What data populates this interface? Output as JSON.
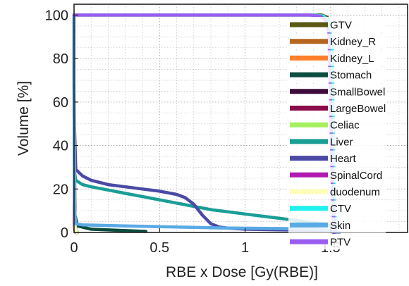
{
  "chart_data": {
    "type": "line",
    "title": "",
    "xlabel": "RBE x Dose [Gy(RBE)]",
    "ylabel": "Volume [%]",
    "xlim": [
      0,
      1.95
    ],
    "ylim": [
      0,
      105
    ],
    "xticks": [
      0,
      0.5,
      1,
      1.5
    ],
    "xtick_labels": [
      "0",
      "0.5",
      "1",
      "1.5"
    ],
    "yticks": [
      0,
      20,
      40,
      60,
      80,
      100
    ],
    "ytick_labels": [
      "0",
      "20",
      "40",
      "60",
      "80",
      "100"
    ],
    "grid": true,
    "legend_position": "right",
    "series": [
      {
        "name": "GTV",
        "color": "#5a5a12",
        "x": [
          0,
          1.4,
          1.45,
          1.48,
          1.5,
          1.51,
          1.52
        ],
        "y": [
          100,
          100,
          100,
          99,
          90,
          20,
          0
        ]
      },
      {
        "name": "Kidney_R",
        "color": "#b5651d",
        "x": [
          0,
          0.002,
          0.006,
          0.012
        ],
        "y": [
          100,
          3,
          1,
          0
        ]
      },
      {
        "name": "Kidney_L",
        "color": "#ff7f2a",
        "x": [
          0,
          0.003,
          0.008,
          0.02
        ],
        "y": [
          100,
          4,
          1,
          0
        ]
      },
      {
        "name": "Stomach",
        "color": "#0b4d3f",
        "x": [
          0,
          0.002,
          0.005,
          0.02,
          0.1,
          0.25,
          0.42
        ],
        "y": [
          100,
          40,
          8,
          3,
          1.5,
          1,
          0.5
        ]
      },
      {
        "name": "SmallBowel",
        "color": "#3d0a3a",
        "x": [
          0,
          0.002,
          0.004,
          0.01,
          0.02
        ],
        "y": [
          100,
          30,
          4,
          1,
          0
        ]
      },
      {
        "name": "LargeBowel",
        "color": "#8b0a4a",
        "x": [
          0,
          0.002,
          0.005,
          0.015
        ],
        "y": [
          100,
          20,
          2,
          0
        ]
      },
      {
        "name": "Celiac",
        "color": "#a6f060",
        "x": [
          0,
          0.003,
          0.008,
          0.02
        ],
        "y": [
          100,
          10,
          1,
          0
        ]
      },
      {
        "name": "Liver",
        "color": "#1a9e96",
        "x": [
          0,
          0.002,
          0.01,
          0.05,
          0.1,
          0.2,
          0.3,
          0.4,
          0.5,
          0.6,
          0.7,
          0.8,
          0.9,
          1.0,
          1.1,
          1.2,
          1.3,
          1.4,
          1.45,
          1.5,
          1.52,
          1.55
        ],
        "y": [
          100,
          28,
          24,
          22,
          21,
          19.5,
          18,
          16.5,
          15,
          13.5,
          12,
          10.5,
          9.5,
          8.5,
          7.5,
          6.5,
          5.5,
          4.5,
          4,
          3,
          1,
          0
        ]
      },
      {
        "name": "Heart",
        "color": "#4a4aa6",
        "x": [
          0,
          0.001,
          0.01,
          0.05,
          0.1,
          0.2,
          0.3,
          0.4,
          0.5,
          0.6,
          0.65,
          0.7,
          0.75,
          0.8,
          0.85,
          0.9,
          1.0,
          1.2,
          1.4,
          1.5,
          1.52
        ],
        "y": [
          100,
          53,
          29,
          26,
          24,
          22,
          21,
          20,
          19,
          17.5,
          16,
          13,
          8,
          4,
          2.5,
          2,
          1.5,
          1.2,
          1,
          0.5,
          0
        ]
      },
      {
        "name": "SpinalCord",
        "color": "#b01ab0",
        "x": [
          0,
          0.002,
          0.005,
          0.01
        ],
        "y": [
          100,
          5,
          1,
          0
        ]
      },
      {
        "name": "duodenum",
        "color": "#fdfdb8",
        "x": [
          0,
          0.002,
          0.006,
          0.015
        ],
        "y": [
          100,
          15,
          2,
          0
        ]
      },
      {
        "name": "CTV",
        "color": "#20f0f0",
        "x": [
          0,
          1.4,
          1.46,
          1.49,
          1.51,
          1.52,
          1.53
        ],
        "y": [
          100,
          100,
          99.5,
          97,
          85,
          20,
          0
        ]
      },
      {
        "name": "Skin",
        "color": "#5aaae6",
        "x": [
          0,
          0.001,
          0.003,
          0.01,
          0.05,
          0.3,
          0.6,
          0.9,
          1.2,
          1.4,
          1.5,
          1.55
        ],
        "y": [
          100,
          40,
          10,
          4,
          3.5,
          3,
          2.5,
          2,
          1.8,
          1.5,
          1,
          0
        ]
      },
      {
        "name": "PTV",
        "color": "#9b5cf0",
        "x": [
          0,
          1.38,
          1.44,
          1.47,
          1.49,
          1.5,
          1.51,
          1.52,
          1.53
        ],
        "y": [
          100,
          100,
          99.5,
          98,
          92,
          60,
          20,
          3,
          0
        ]
      }
    ]
  }
}
